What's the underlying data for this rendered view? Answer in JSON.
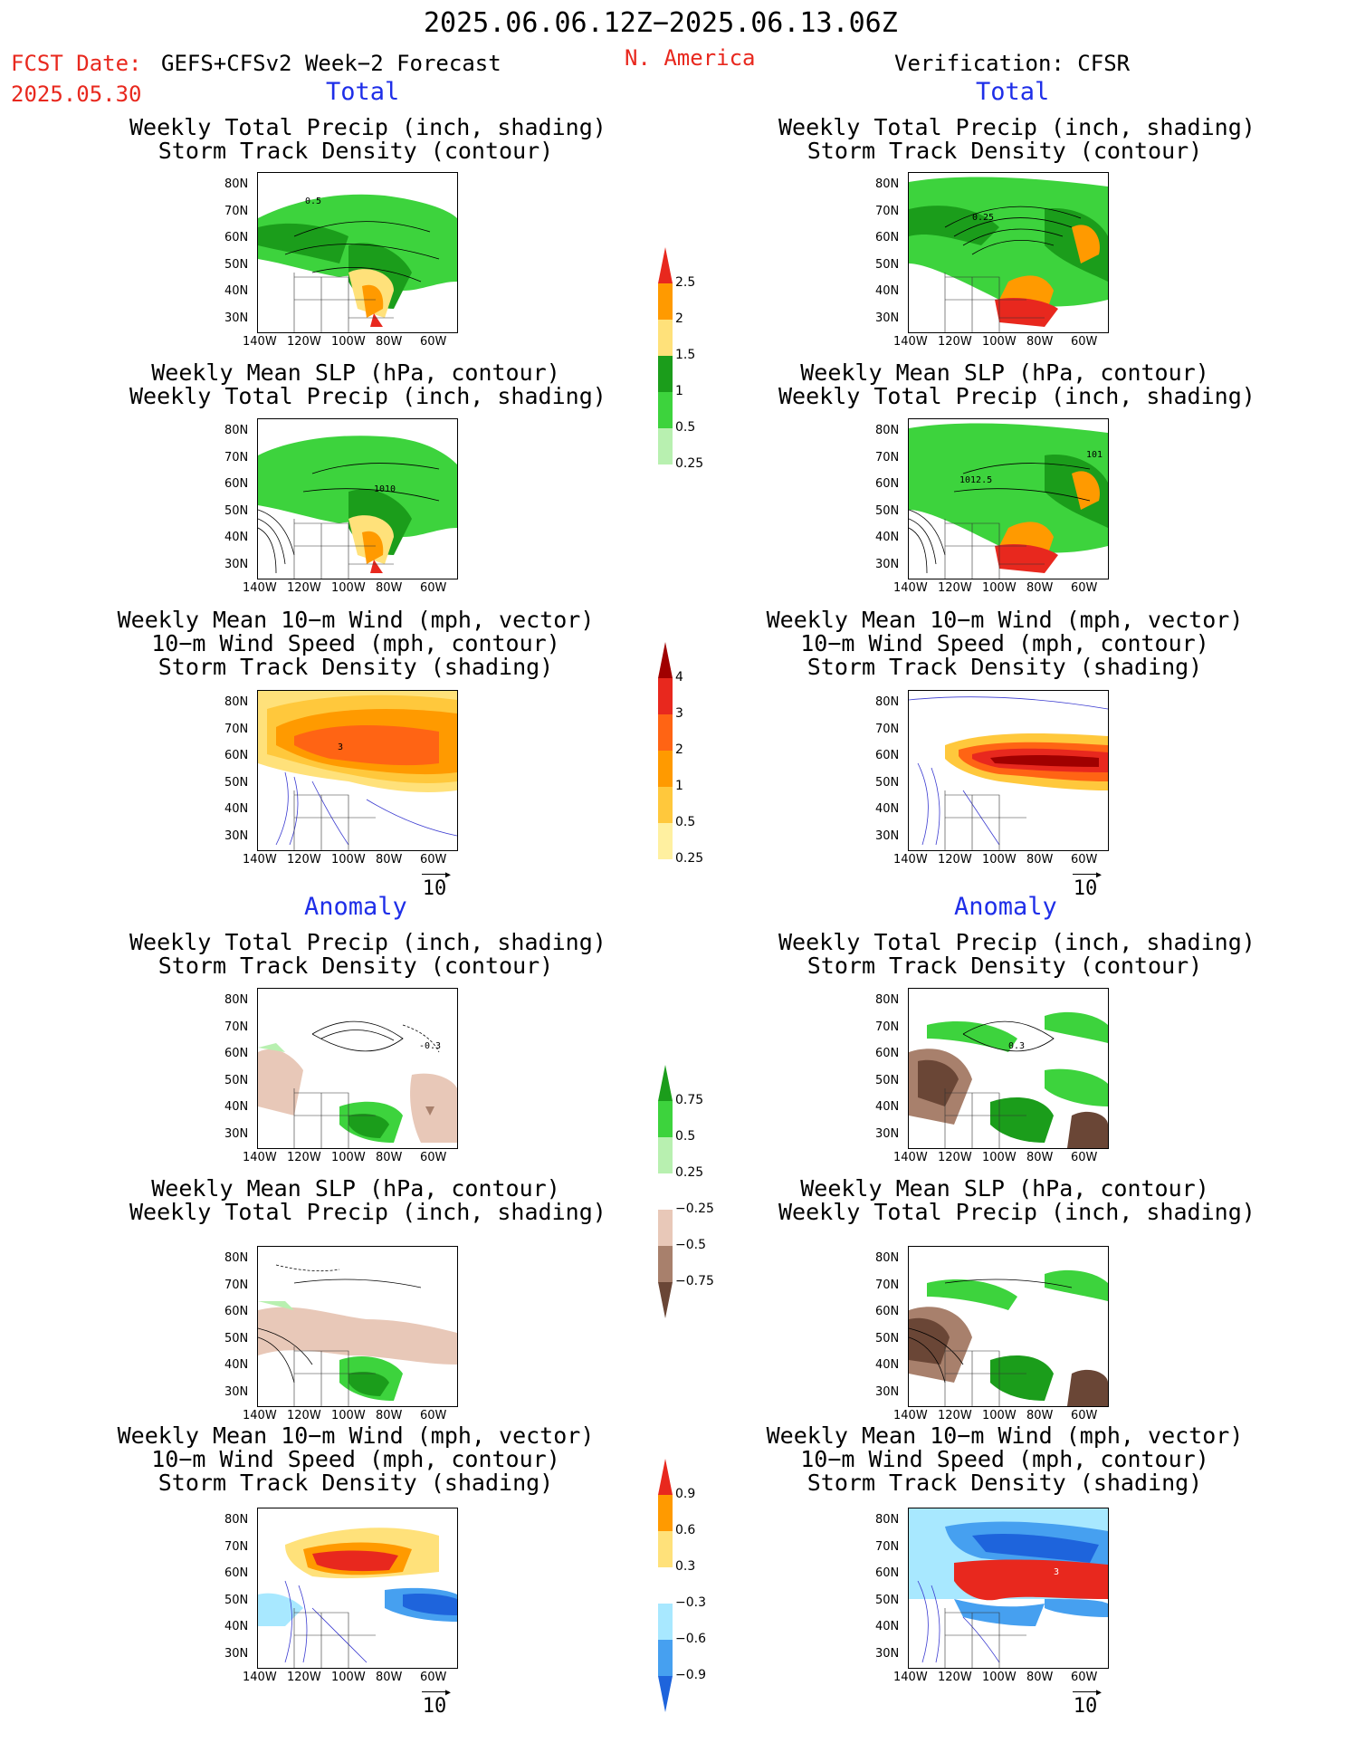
{
  "header": {
    "period": "2025.06.06.12Z−2025.06.13.06Z",
    "fcst_label": "FCST Date:",
    "fcst_date": "2025.05.30",
    "forecast_name": "GEFS+CFSv2 Week−2 Forecast",
    "region": "N. America",
    "verification": "Verification: CFSR"
  },
  "sections": {
    "total": "Total",
    "anomaly": "Anomaly"
  },
  "titles": {
    "precip_storm": [
      "Weekly Total Precip (inch, shading)",
      "Storm Track Density (contour)"
    ],
    "slp_precip": [
      "Weekly Mean SLP (hPa, contour)",
      "Weekly Total Precip (inch, shading)"
    ],
    "wind_storm": [
      "Weekly Mean 10−m Wind (mph, vector)",
      "10−m Wind Speed (mph, contour)",
      "Storm Track Density (shading)"
    ]
  },
  "axes": {
    "lat_labels": [
      "80N",
      "70N",
      "60N",
      "50N",
      "40N",
      "30N"
    ],
    "lon_labels": [
      "140W",
      "120W",
      "100W",
      "80W",
      "60W"
    ]
  },
  "vector_ref": "10",
  "contour_labels": {
    "fc_precip_storm": "0.5",
    "ob_precip_storm": "0.25",
    "fc_slp": "1010",
    "ob_slp": "1012.5",
    "ob_slp_right": "101",
    "fc_wind": "3",
    "fc_anom_storm": "-0.3",
    "ob_anom_storm": "0.3",
    "ob_anom_wind": "3"
  },
  "colorbars": {
    "precip": {
      "ticks": [
        "2.5",
        "2",
        "1.5",
        "1",
        "0.5",
        "0.25"
      ],
      "colors": [
        "#e8281e",
        "#ff9a00",
        "#ffe17a",
        "#1b9d1b",
        "#3dd33d",
        "#b8f0b0"
      ]
    },
    "storm": {
      "ticks": [
        "4",
        "3",
        "2",
        "1",
        "0.5",
        "0.25"
      ],
      "colors": [
        "#a00000",
        "#e8281e",
        "#ff6414",
        "#ff9a00",
        "#ffc83c",
        "#fff0a0"
      ]
    },
    "precip_anom": {
      "ticks": [
        "0.75",
        "0.5",
        "0.25",
        "−0.25",
        "−0.5",
        "−0.75"
      ],
      "colors": [
        "#1b9d1b",
        "#3dd33d",
        "#b8f0b0",
        "#ffffff",
        "#e8c8b8",
        "#a8806c",
        "#6a4636"
      ]
    },
    "storm_anom": {
      "ticks": [
        "0.9",
        "0.6",
        "0.3",
        "−0.3",
        "−0.6",
        "−0.9"
      ],
      "colors": [
        "#e8281e",
        "#ff9a00",
        "#ffe17a",
        "#ffffff",
        "#a8e8ff",
        "#46a0f0",
        "#1e64dc"
      ]
    }
  }
}
